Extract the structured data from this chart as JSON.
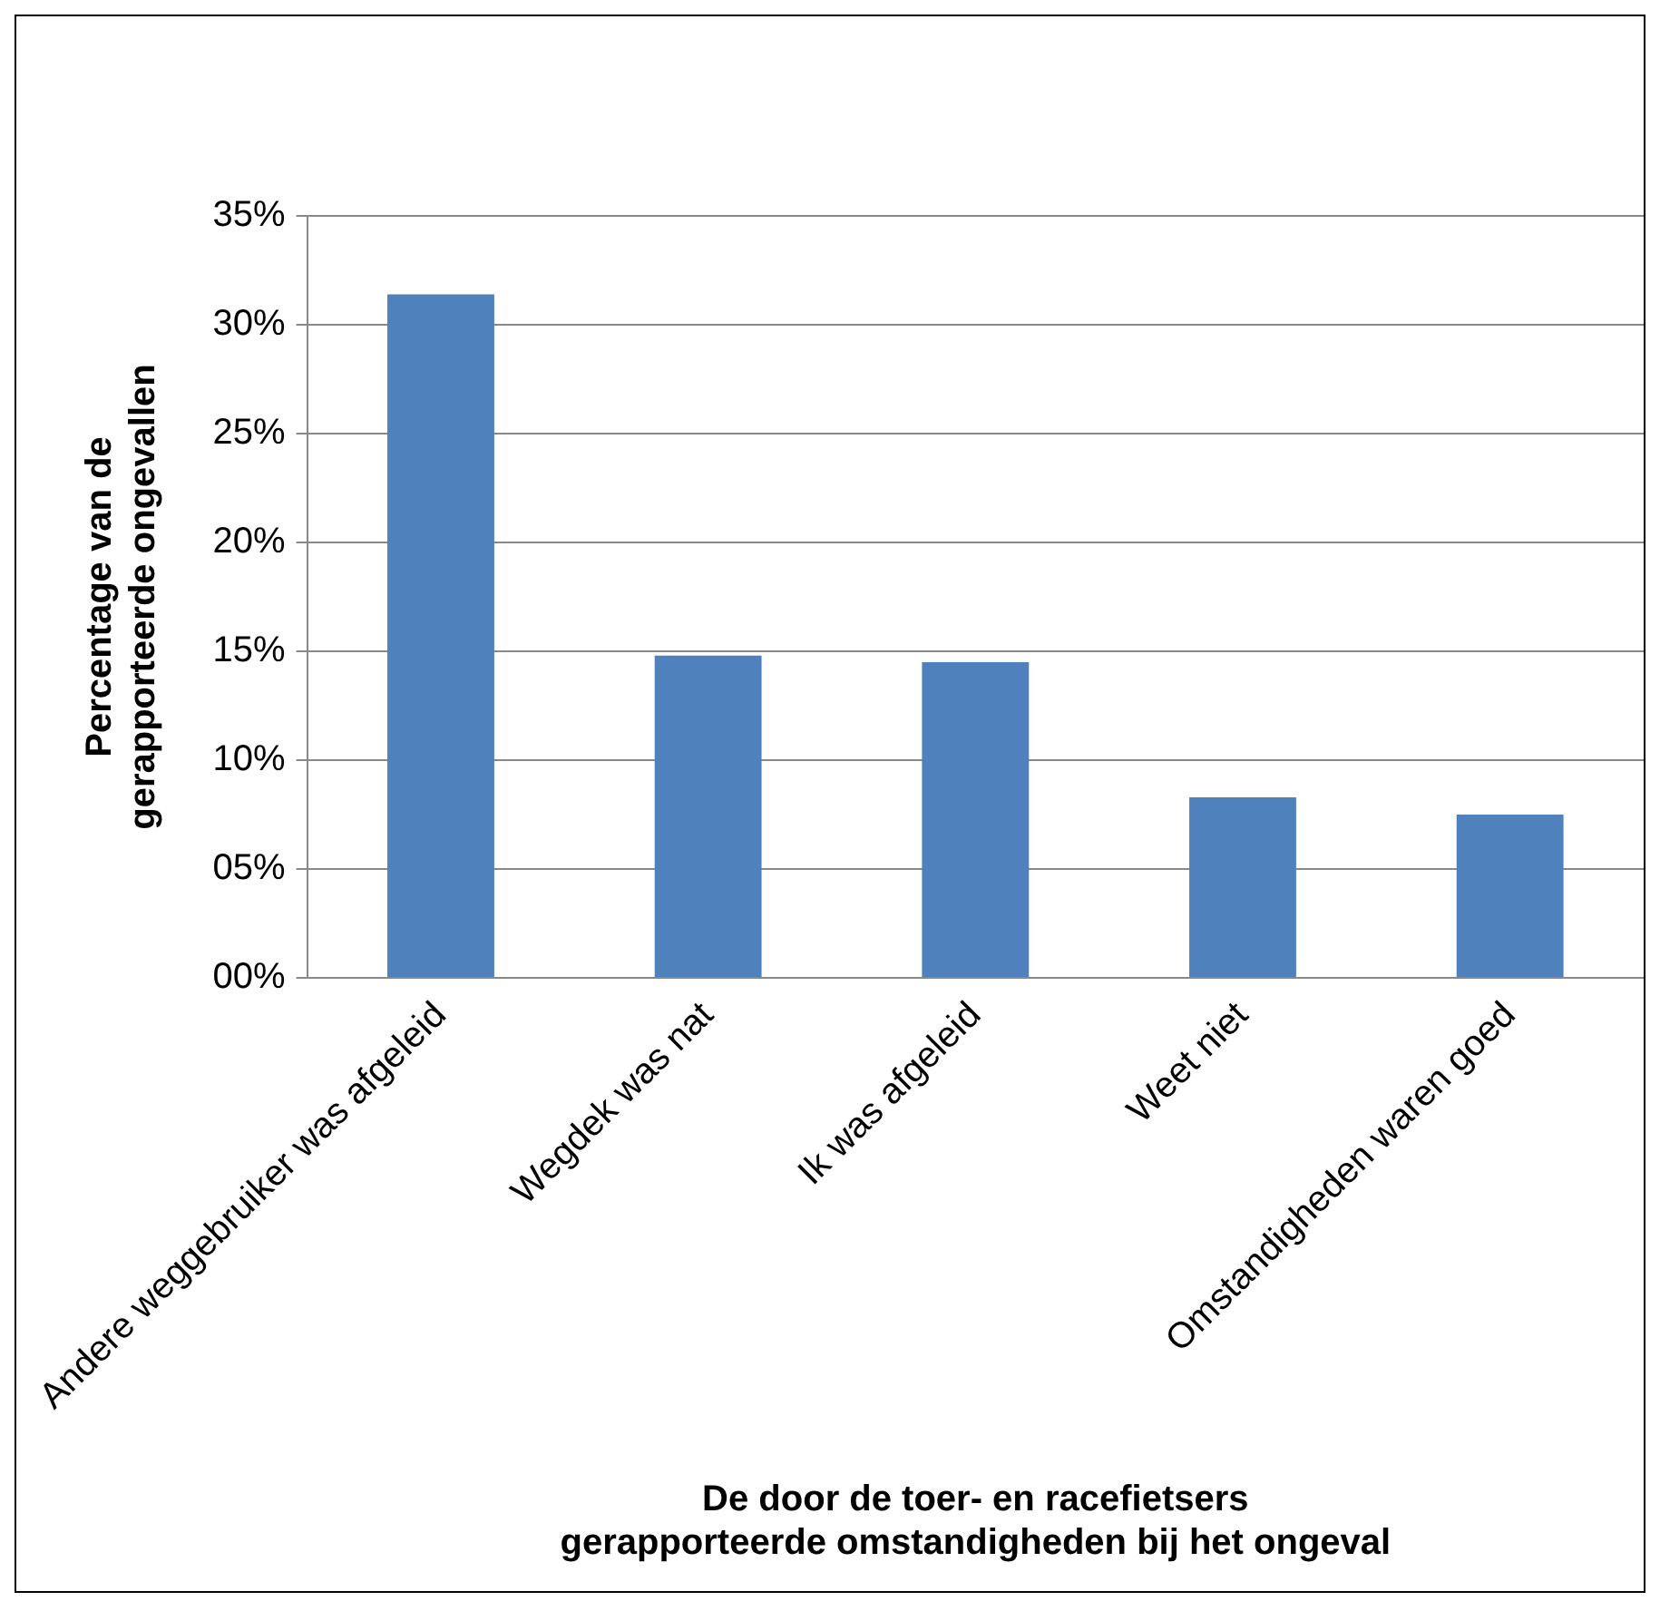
{
  "chart_data": {
    "type": "bar",
    "xlabel": "De door de toer- en racefietsers gerapporteerde omstandigheden bij het ongeval",
    "ylabel": "Percentage van de gerapporteerde ongevallen",
    "categories": [
      "Andere weggebruiker was afgeleid",
      "Wegdek was nat",
      "Ik was afgeleid",
      "Weet niet",
      "Omstandigheden waren goed"
    ],
    "values": [
      31.4,
      14.8,
      14.5,
      8.3,
      7.5
    ],
    "color": "#4f81bd",
    "ylim": [
      0,
      35
    ],
    "yticks": [
      {
        "value": 0,
        "label": "00%"
      },
      {
        "value": 5,
        "label": "05%"
      },
      {
        "value": 10,
        "label": "10%"
      },
      {
        "value": 15,
        "label": "15%"
      },
      {
        "value": 20,
        "label": "20%"
      },
      {
        "value": 25,
        "label": "25%"
      },
      {
        "value": 30,
        "label": "30%"
      },
      {
        "value": 35,
        "label": "35%"
      }
    ],
    "grid": "y",
    "legend": false
  }
}
